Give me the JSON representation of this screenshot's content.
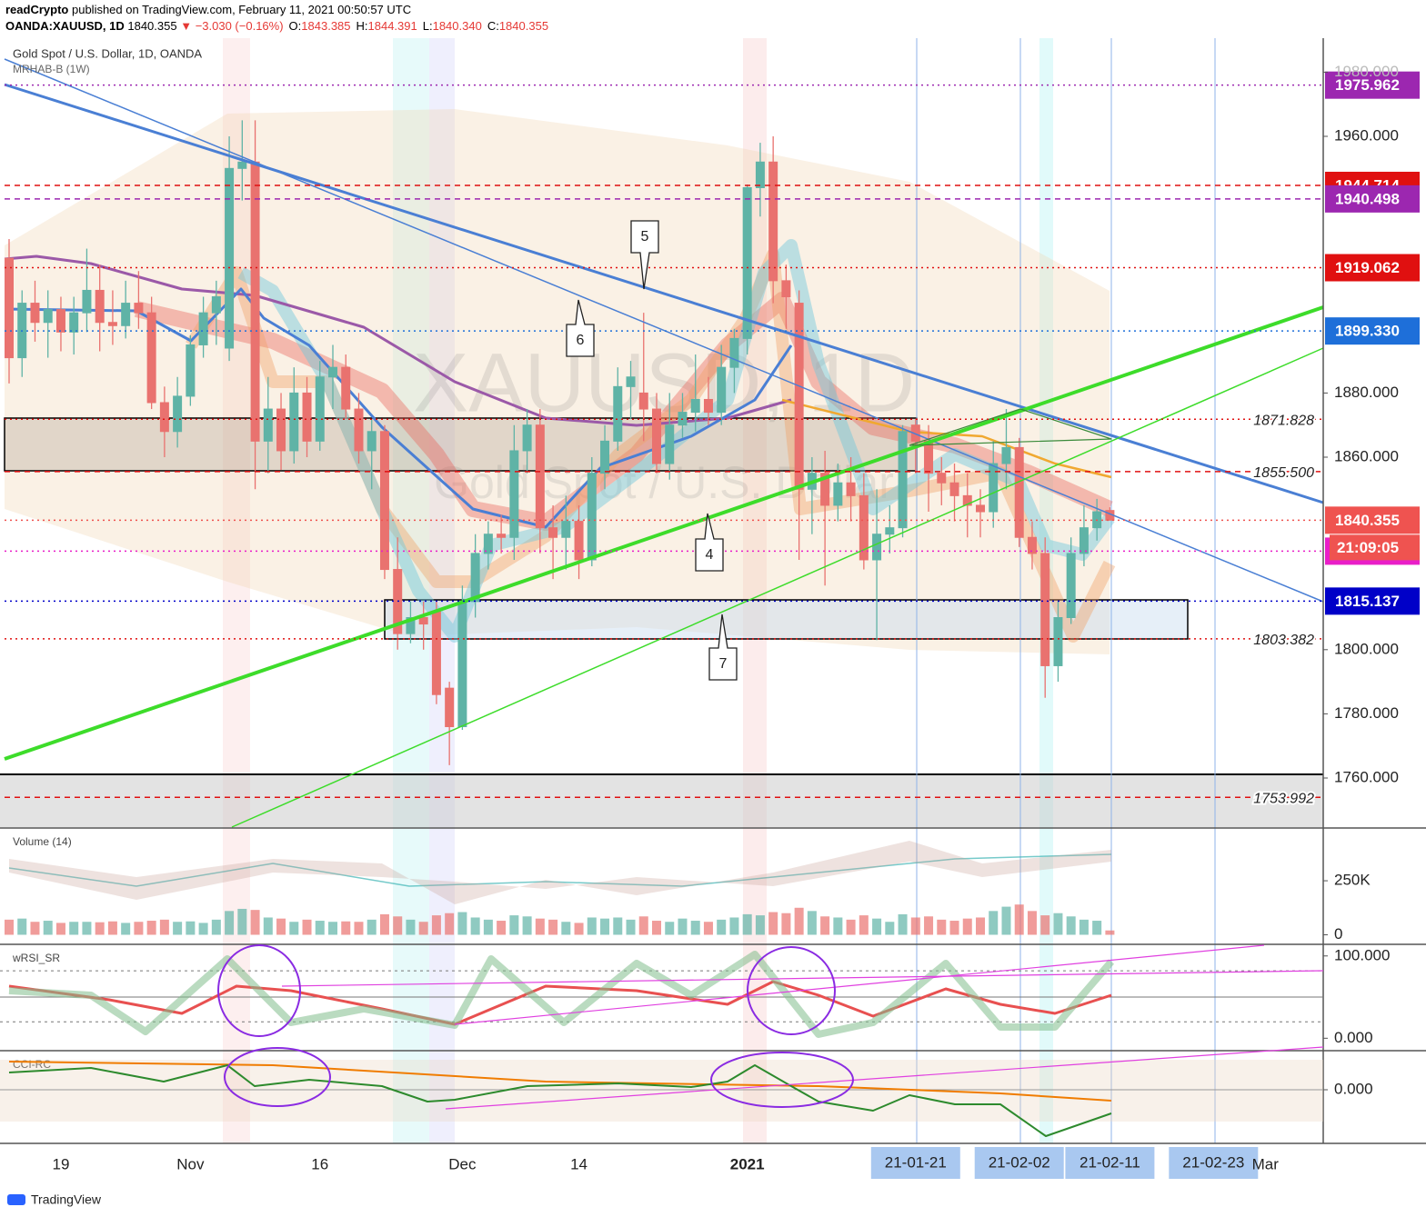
{
  "header": {
    "author": "readCrypto",
    "published": "published on TradingView.com, February 11, 2021 00:50:57 UTC",
    "symbol": "OANDA:XAUUSD, 1D",
    "last": "1840.355",
    "change": "▼ −3.030 (−0.16%)",
    "ohlc": [
      {
        "key": "O:",
        "value": "1843.385"
      },
      {
        "key": "H:",
        "value": "1844.391"
      },
      {
        "key": "L:",
        "value": "1840.340"
      },
      {
        "key": "C:",
        "value": "1840.355"
      }
    ]
  },
  "footer": {
    "logo": "TradingView"
  },
  "chart_data": [
    {
      "type": "candlestick",
      "title": "Gold Spot / U.S. Dollar, 1D, OANDA",
      "indicator": "MRHAB-B (1W)",
      "watermark": [
        "XAUUSD, 1D",
        "Gold Spot / U.S. Dollar"
      ],
      "up_color": "#5fb3a6",
      "down_color": "#e9726f",
      "categories": [
        null,
        null,
        null,
        null,
        "19",
        null,
        null,
        null,
        null,
        null,
        null,
        null,
        null,
        null,
        "Nov",
        null,
        null,
        null,
        null,
        null,
        null,
        null,
        null,
        null,
        "16",
        null,
        null,
        null,
        null,
        null,
        null,
        null,
        null,
        null,
        null,
        "Dec",
        null,
        null,
        null,
        null,
        null,
        null,
        null,
        null,
        "14",
        null,
        null,
        null,
        null,
        null,
        null,
        null,
        null,
        null,
        null,
        null,
        null,
        "2021",
        null,
        null,
        null,
        null,
        null,
        null,
        null,
        null,
        null,
        null,
        null,
        null,
        "21-01-21",
        null,
        null,
        null,
        null,
        null,
        null,
        null,
        "21-02-02",
        null,
        null,
        null,
        null,
        null,
        null,
        "21-02-11",
        null,
        null,
        null,
        null,
        null,
        null,
        null,
        "21-02-23",
        null,
        null,
        null,
        "Mar",
        null,
        null,
        null,
        null
      ],
      "open": [
        1922,
        1891,
        1908,
        1902,
        1906,
        1899,
        1905,
        1912,
        1902,
        1901,
        1908,
        1905,
        1877,
        1868,
        1879,
        1895,
        1905,
        1894,
        1950,
        1952,
        1865,
        1875,
        1862,
        1880,
        1865,
        1885,
        1888,
        1875,
        1862,
        1868,
        1825,
        1805,
        1810,
        1812,
        1788,
        1776,
        1815,
        1830,
        1836,
        1835,
        1862,
        1870,
        1838,
        1835,
        1840,
        1828,
        1855,
        1865,
        1882,
        1880,
        1875,
        1858,
        1870,
        1874,
        1878,
        1874,
        1888,
        1897,
        1944,
        1952,
        1915,
        1908,
        1850,
        1855,
        1845,
        1852,
        1848,
        1828,
        1836,
        1838,
        1870,
        1865,
        1855,
        1852,
        1848,
        1845,
        1843,
        1858,
        1863,
        1835,
        1830,
        1795,
        1810,
        1830,
        1838,
        1843.385,
        null,
        null,
        null,
        null,
        null,
        null,
        null,
        null,
        null,
        null,
        null,
        null,
        null,
        null,
        null,
        null
      ],
      "high": [
        1928,
        1912,
        1915,
        1912,
        1910,
        1910,
        1925,
        1920,
        1912,
        1915,
        1918,
        1910,
        1882,
        1885,
        1898,
        1910,
        1915,
        1960,
        1965,
        1965,
        1885,
        1880,
        1888,
        1885,
        1890,
        1895,
        1892,
        1880,
        1872,
        1870,
        1835,
        1815,
        1815,
        1815,
        1790,
        1820,
        1836,
        1840,
        1842,
        1870,
        1875,
        1875,
        1845,
        1848,
        1845,
        1860,
        1870,
        1888,
        1890,
        1905,
        1880,
        1880,
        1880,
        1892,
        1885,
        1895,
        1900,
        1945,
        1958,
        1960,
        1920,
        1912,
        1860,
        1862,
        1858,
        1860,
        1855,
        1850,
        1845,
        1870,
        1872,
        1870,
        1860,
        1858,
        1855,
        1850,
        1865,
        1875,
        1866,
        1840,
        1835,
        1815,
        1835,
        1845,
        1847,
        1844.391,
        null,
        null,
        null,
        null,
        null,
        null,
        null,
        null,
        null,
        null,
        null,
        null,
        null,
        null,
        null,
        null
      ],
      "low": [
        1883,
        1885,
        1896,
        1891,
        1893,
        1892,
        1899,
        1893,
        1895,
        1897,
        1900,
        1875,
        1860,
        1863,
        1876,
        1891,
        1895,
        1890,
        1940,
        1850,
        1855,
        1856,
        1858,
        1860,
        1862,
        1875,
        1872,
        1858,
        1850,
        1822,
        1800,
        1802,
        1800,
        1783,
        1764,
        1775,
        1810,
        1825,
        1830,
        1828,
        1855,
        1830,
        1822,
        1825,
        1822,
        1826,
        1850,
        1862,
        1872,
        1865,
        1855,
        1853,
        1866,
        1868,
        1870,
        1870,
        1880,
        1892,
        1935,
        1908,
        1900,
        1828,
        1836,
        1820,
        1840,
        1840,
        1825,
        1803,
        1830,
        1835,
        1855,
        1843,
        1845,
        1840,
        1835,
        1835,
        1838,
        1850,
        1832,
        1825,
        1785,
        1790,
        1808,
        1826,
        1834,
        1840.34,
        null,
        null,
        null,
        null,
        null,
        null,
        null,
        null,
        null,
        null,
        null,
        null,
        null,
        null,
        null,
        null
      ],
      "close": [
        1891,
        1908,
        1902,
        1906,
        1899,
        1905,
        1912,
        1902,
        1901,
        1908,
        1905,
        1877,
        1868,
        1879,
        1895,
        1905,
        1910,
        1950,
        1952,
        1865,
        1875,
        1862,
        1880,
        1865,
        1885,
        1888,
        1875,
        1862,
        1868,
        1825,
        1805,
        1810,
        1808,
        1786,
        1776,
        1815,
        1830,
        1836,
        1835,
        1862,
        1870,
        1838,
        1835,
        1840,
        1828,
        1855,
        1865,
        1882,
        1885,
        1875,
        1858,
        1870,
        1874,
        1878,
        1874,
        1888,
        1897,
        1944,
        1952,
        1915,
        1910,
        1850,
        1855,
        1845,
        1852,
        1848,
        1828,
        1836,
        1838,
        1868,
        1865,
        1855,
        1852,
        1848,
        1845,
        1843,
        1858,
        1863,
        1835,
        1830,
        1795,
        1810,
        1830,
        1838,
        1843,
        1840.355,
        null,
        null,
        null,
        null,
        null,
        null,
        null,
        null,
        null,
        null,
        null,
        null,
        null,
        null,
        null,
        null
      ],
      "ylim": [
        1744.7,
        1990.6
      ],
      "yticks": [
        {
          "value": 1760,
          "label": "1760.000"
        },
        {
          "value": 1780,
          "label": "1780.000"
        },
        {
          "value": 1800,
          "label": "1800.000"
        },
        {
          "value": 1860,
          "label": "1860.000"
        },
        {
          "value": 1880,
          "label": "1880.000"
        },
        {
          "value": 1960,
          "label": "1960.000"
        },
        {
          "value": 1980,
          "label": "1980.000"
        }
      ],
      "levels": [
        {
          "value": 1975.962,
          "color": "#9c27b0",
          "dash": "dotted",
          "display": "tag"
        },
        {
          "value": 1944.714,
          "color": "#e01010",
          "dash": "dashed",
          "display": "tag"
        },
        {
          "value": 1940.498,
          "color": "#9c27b0",
          "dash": "dashed",
          "display": "tag"
        },
        {
          "value": 1919.062,
          "color": "#e01010",
          "dash": "dotted",
          "display": "tag"
        },
        {
          "value": 1899.33,
          "label": "1899.330",
          "color": "#1e6fd9",
          "dash": "dotted",
          "display": "tag"
        },
        {
          "value": 1871.828,
          "color": "#e01010",
          "dash": "dotted",
          "display": "inline"
        },
        {
          "value": 1855.5,
          "label": "1855.500",
          "color": "#e01010",
          "dash": "dashed",
          "display": "inline"
        },
        {
          "value": 1840.355,
          "color": "#ef5350",
          "dash": "dotted",
          "display": "tag"
        },
        {
          "value": 1830.705,
          "color": "#e91ec8",
          "dash": "dotted",
          "display": "tag"
        },
        {
          "value": 1815.137,
          "color": "#0000c8",
          "dash": "dotted",
          "display": "tag"
        },
        {
          "value": 1803.382,
          "color": "#e01010",
          "dash": "dotted",
          "display": "inline"
        },
        {
          "value": 1753.992,
          "color": "#e01010",
          "dash": "dashed",
          "display": "inline"
        }
      ],
      "countdown": "21:09:05",
      "annotations": [
        "5",
        "6",
        "4",
        "7"
      ]
    },
    {
      "type": "bar",
      "title": "Volume (14)",
      "values": [
        70000,
        75000,
        60000,
        65000,
        55000,
        60000,
        60000,
        58000,
        62000,
        55000,
        60000,
        65000,
        70000,
        60000,
        62000,
        55000,
        70000,
        110000,
        120000,
        115000,
        80000,
        75000,
        60000,
        70000,
        65000,
        60000,
        62000,
        60000,
        70000,
        95000,
        85000,
        70000,
        60000,
        90000,
        100000,
        105000,
        80000,
        70000,
        65000,
        90000,
        85000,
        75000,
        70000,
        60000,
        55000,
        80000,
        75000,
        80000,
        70000,
        85000,
        65000,
        60000,
        75000,
        65000,
        60000,
        70000,
        80000,
        95000,
        90000,
        105000,
        100000,
        125000,
        110000,
        85000,
        80000,
        70000,
        90000,
        75000,
        60000,
        95000,
        80000,
        85000,
        70000,
        65000,
        75000,
        80000,
        110000,
        130000,
        140000,
        110000,
        90000,
        100000,
        85000,
        70000,
        65000,
        20000
      ],
      "ylim": [
        -40000,
        490000
      ],
      "yticks": [
        0,
        {
          "value": 250000,
          "label": "250K"
        }
      ]
    },
    {
      "type": "indicator",
      "title": "wRSI_SR",
      "ylim": [
        -14,
        113
      ],
      "yticks": [
        {
          "value": 0,
          "label": "0.000"
        },
        {
          "value": 100,
          "label": "100.000"
        }
      ]
    },
    {
      "type": "indicator",
      "title": "CCI-RC",
      "ylim": [
        -295,
        210
      ],
      "yticks": [
        {
          "value": 0,
          "label": "0.000"
        }
      ]
    }
  ]
}
